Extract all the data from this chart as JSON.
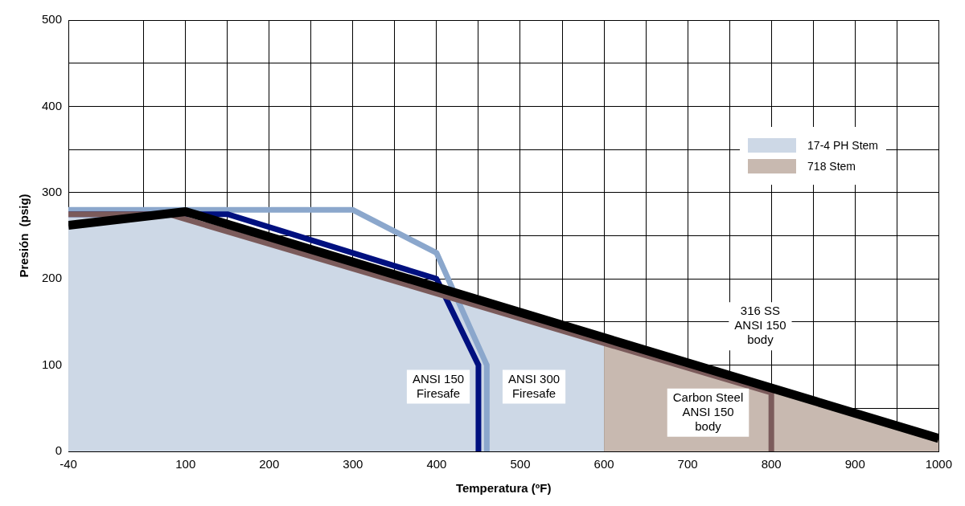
{
  "chart_data": {
    "type": "line",
    "xlabel": "Temperatura (ºF)",
    "ylabel": "Presión  (psig)",
    "xlim": [
      -40,
      1000
    ],
    "ylim": [
      0,
      500
    ],
    "xticks": [
      -40,
      {
        "value": 50,
        "label": null
      },
      100,
      {
        "value": 150,
        "label": null
      },
      200,
      {
        "value": 250,
        "label": null
      },
      300,
      {
        "value": 350,
        "label": null
      },
      400,
      {
        "value": 450,
        "label": null
      },
      500,
      {
        "value": 550,
        "label": null
      },
      600,
      {
        "value": 650,
        "label": null
      },
      700,
      {
        "value": 750,
        "label": null
      },
      800,
      {
        "value": 850,
        "label": null
      },
      900,
      {
        "value": 950,
        "label": null
      },
      1000
    ],
    "yticks": [
      0,
      {
        "value": 50,
        "label": null
      },
      100,
      {
        "value": 150,
        "label": null
      },
      200,
      {
        "value": 250,
        "label": null
      },
      300,
      {
        "value": 350,
        "label": null
      },
      400,
      {
        "value": 450,
        "label": null
      },
      500
    ],
    "grid": true,
    "legend": "top right",
    "line_style": "solid",
    "marker": "none",
    "series": [
      {
        "type": "area",
        "name": "17-4 PH Stem",
        "color": "#cdd8e6",
        "x": [
          -40,
          80,
          600
        ],
        "values": [
          275,
          275,
          126
        ]
      },
      {
        "type": "area",
        "name": "718 Stem",
        "color": "#c8b9b0",
        "x": [
          600,
          800,
          800,
          1000
        ],
        "values": [
          126,
          68,
          73,
          15
        ]
      },
      {
        "type": "line",
        "color": "#8ba7cc",
        "x": [
          -40,
          300,
          400,
          460,
          460
        ],
        "values": [
          280,
          280,
          230,
          100,
          0
        ]
      },
      {
        "type": "line",
        "color": "#00107f",
        "x": [
          -40,
          150,
          400,
          450,
          450
        ],
        "values": [
          275,
          275,
          200,
          100,
          0
        ]
      },
      {
        "type": "line",
        "color": "#7b5b5b",
        "x": [
          -40,
          80,
          800,
          800
        ],
        "values": [
          275,
          275,
          68,
          0
        ]
      },
      {
        "type": "line",
        "color": "#000000",
        "x": [
          -40,
          100,
          1000
        ],
        "values": [
          262,
          278,
          15
        ]
      }
    ],
    "annotations": [
      "ANSI 150\nFiresafe",
      "ANSI 300\nFiresafe",
      "316 SS\nANSI 150\nbody",
      "Carbon Steel\nANSI 150\nbody"
    ]
  }
}
